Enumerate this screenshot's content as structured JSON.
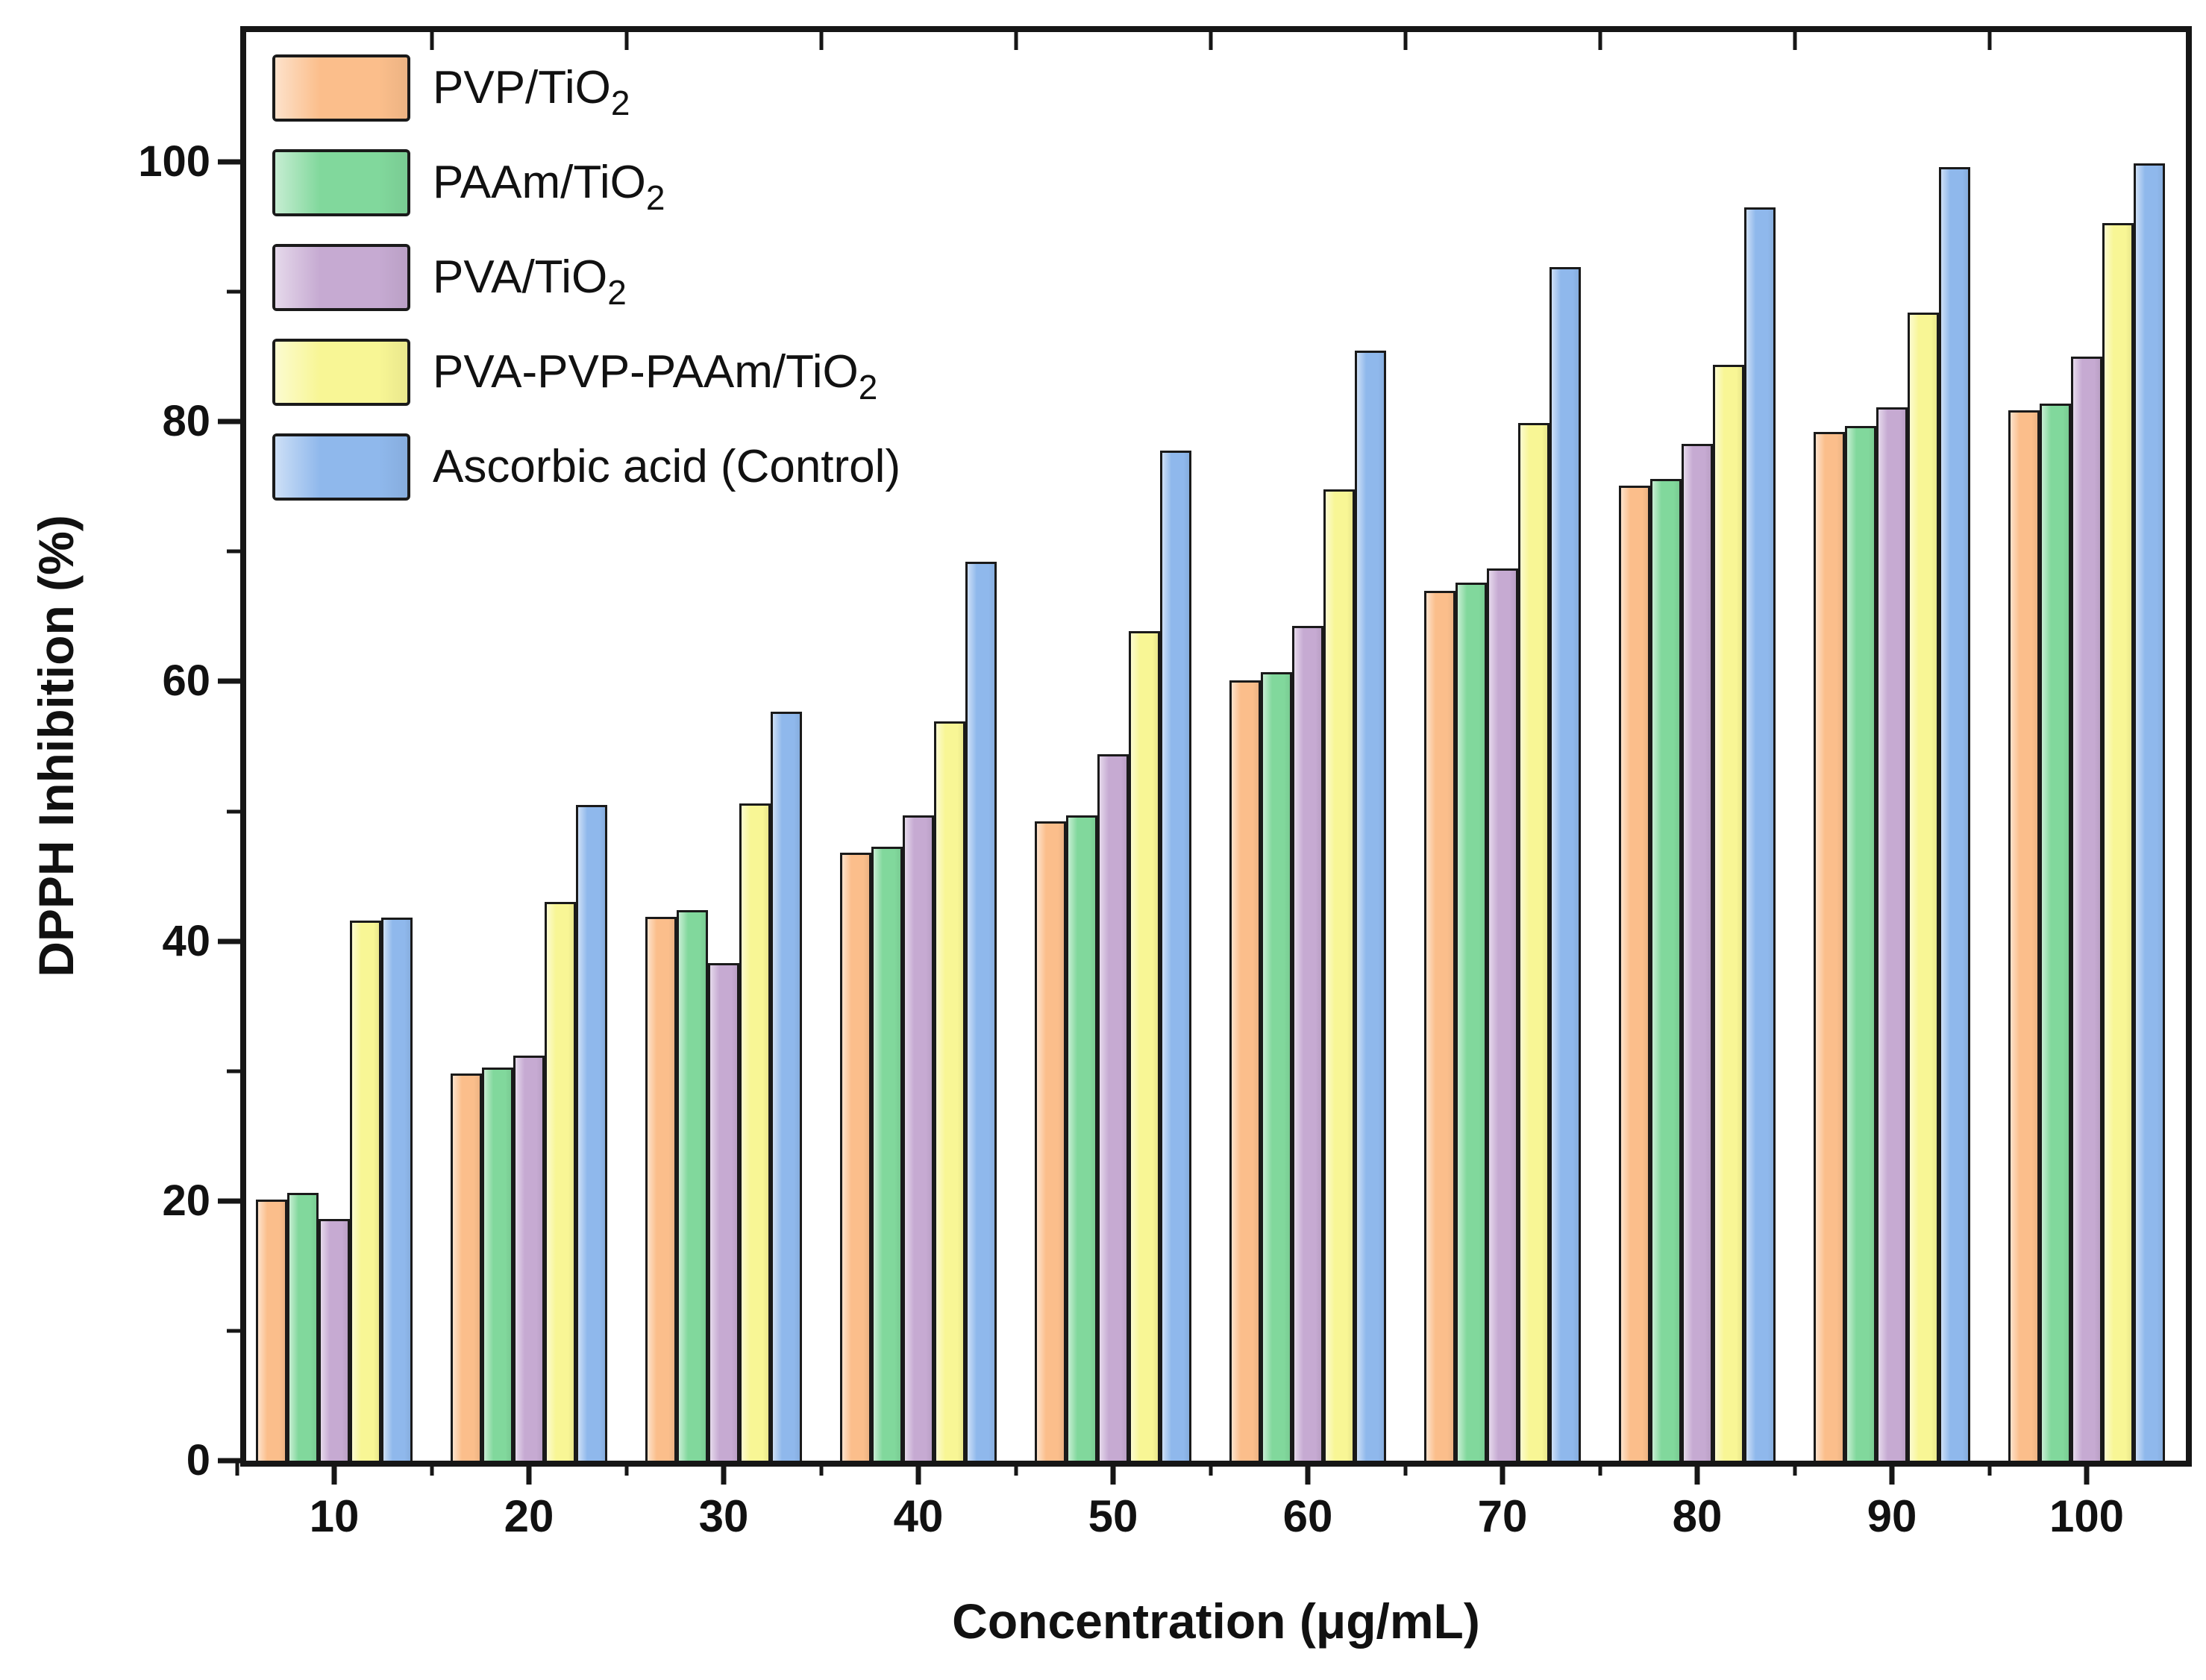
{
  "chart_data": {
    "type": "bar",
    "title": "",
    "xlabel": "Concentration (μg/mL)",
    "ylabel": "DPPH Inhibition (%)",
    "categories": [
      10,
      20,
      30,
      40,
      50,
      60,
      70,
      80,
      90,
      100
    ],
    "series": [
      {
        "name_main": "PVP/TiO",
        "name_sub": "2",
        "color": "#FBBE8B",
        "values": [
          20.1,
          29.8,
          41.9,
          46.8,
          49.2,
          60.1,
          67.0,
          75.1,
          79.2,
          80.9
        ]
      },
      {
        "name_main": "PAAm/TiO",
        "name_sub": "2",
        "color": "#81D89C",
        "values": [
          20.6,
          30.3,
          42.4,
          47.3,
          49.7,
          60.7,
          67.6,
          75.6,
          79.7,
          81.4
        ]
      },
      {
        "name_main": "PVA/TiO",
        "name_sub": "2",
        "color": "#C6AAD2",
        "values": [
          18.6,
          31.2,
          38.3,
          49.7,
          54.4,
          64.3,
          68.7,
          78.3,
          81.1,
          85.0
        ]
      },
      {
        "name_main": "PVA-PVP-PAAm/TiO",
        "name_sub": "2",
        "color": "#F8F695",
        "values": [
          41.6,
          43.0,
          50.6,
          56.9,
          63.9,
          74.8,
          79.9,
          84.4,
          88.4,
          95.3
        ]
      },
      {
        "name_main": "Ascorbic acid (Control)",
        "name_sub": "",
        "color": "#8FB8EC",
        "values": [
          41.8,
          50.5,
          57.7,
          69.2,
          77.8,
          85.5,
          91.9,
          96.5,
          99.6,
          99.9
        ]
      }
    ],
    "ylim": [
      0,
      110
    ],
    "yticks": [
      0,
      20,
      40,
      60,
      80,
      100
    ],
    "yticks_minor": [
      10,
      30,
      50,
      70,
      90
    ],
    "grid": false,
    "legend_position": "top-left",
    "bar_edge_color": "#1a1a1a",
    "frame_color": "#161616"
  }
}
